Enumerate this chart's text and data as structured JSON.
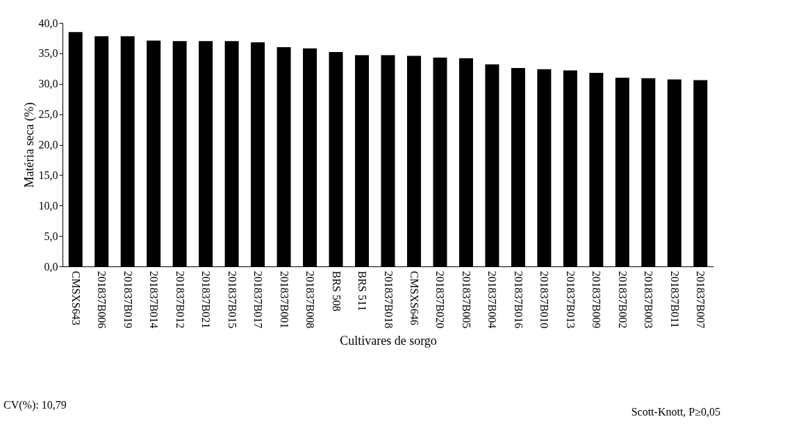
{
  "chart_data": {
    "type": "bar",
    "xlabel": "Cultivares de sorgo",
    "ylabel": "Matéria seca (%)",
    "categories": [
      "CMSXS643",
      "201837B006",
      "201837B019",
      "201837B014",
      "201837B012",
      "201837B021",
      "201837B015",
      "201837B017",
      "201837B001",
      "201837B008",
      "BRS 508",
      "BRS 511",
      "201837B018",
      "CMSXS646",
      "201837B020",
      "201837B005",
      "201837B004",
      "201837B016",
      "201837B010",
      "201837B013",
      "201837B009",
      "201837B002",
      "201837B003",
      "201837B011",
      "201837B007"
    ],
    "values": [
      38.5,
      37.8,
      37.8,
      37.1,
      37.0,
      37.0,
      37.0,
      36.8,
      36.0,
      35.8,
      35.2,
      34.7,
      34.7,
      34.6,
      34.3,
      34.2,
      33.2,
      32.6,
      32.4,
      32.2,
      31.8,
      31.0,
      30.9,
      30.7,
      30.6
    ],
    "color": "#000000",
    "ylim": [
      0,
      40
    ],
    "yticks": [
      {
        "value": 0,
        "label": "0,0"
      },
      {
        "value": 5,
        "label": "5,0"
      },
      {
        "value": 10,
        "label": "10,0"
      },
      {
        "value": 15,
        "label": "15,0"
      },
      {
        "value": 20,
        "label": "20,0"
      },
      {
        "value": 25,
        "label": "25,0"
      },
      {
        "value": 30,
        "label": "30,0"
      },
      {
        "value": 35,
        "label": "35,0"
      },
      {
        "value": 40,
        "label": "40,0"
      }
    ],
    "grid": false,
    "annotations": [
      "CV(%): 10,79",
      "Scott-Knott, P≥0,05"
    ]
  }
}
